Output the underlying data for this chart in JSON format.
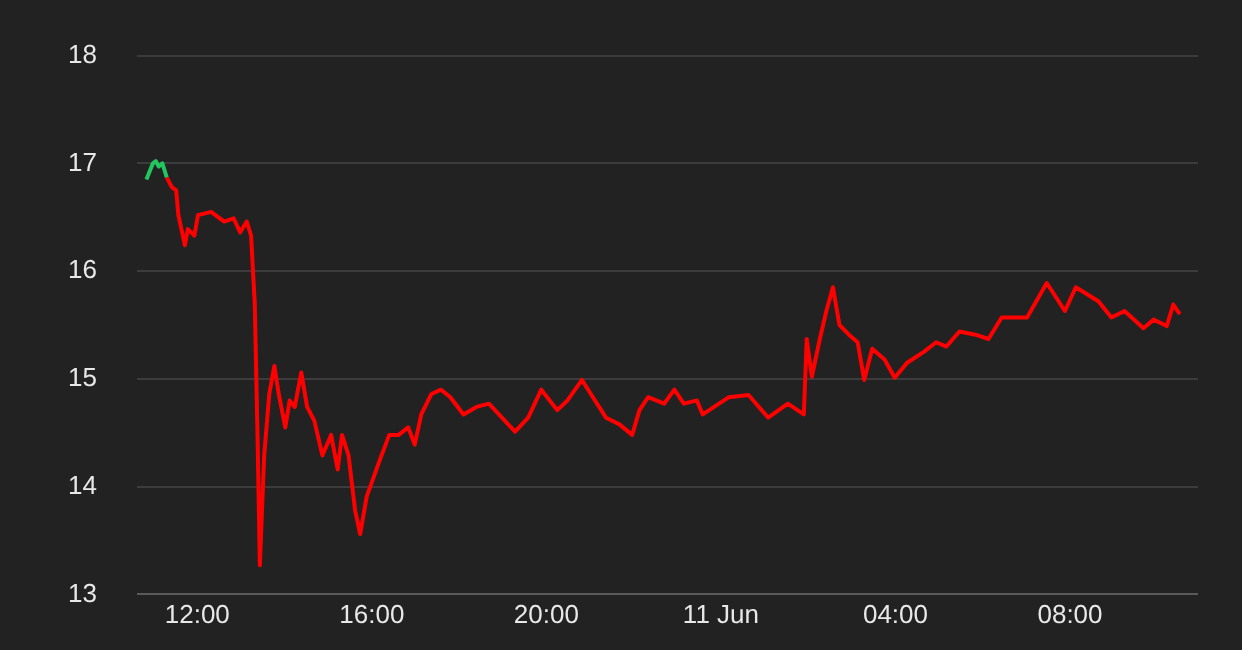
{
  "chart_data": {
    "type": "line",
    "xlim": [
      "--06-10T10:37",
      "--06-11T10:56"
    ],
    "xticks": [
      {
        "value": "--06-10T12:00",
        "label": "12:00"
      },
      {
        "value": "--06-10T16:00",
        "label": "16:00"
      },
      {
        "value": "--06-10T20:00",
        "label": "20:00"
      },
      {
        "value": "--06-11T00:00",
        "label": "11 Jun"
      },
      {
        "value": "--06-11T04:00",
        "label": "04:00"
      },
      {
        "value": "--06-11T08:00",
        "label": "08:00"
      }
    ],
    "ylim": [
      13,
      18
    ],
    "yticks": [
      13,
      14,
      15,
      16,
      17,
      18
    ],
    "grid": "y",
    "legend": false,
    "marker": "none",
    "line_style": "solid",
    "series": [
      {
        "color": "#22c55e",
        "x": [
          "--06-10T10:50",
          "--06-10T10:59",
          "--06-10T11:03",
          "--06-10T11:07",
          "--06-10T11:12",
          "--06-10T11:18"
        ],
        "values": [
          16.85,
          17.0,
          17.02,
          16.97,
          17.0,
          16.87
        ]
      },
      {
        "color": "#ff0000",
        "x": [
          "--06-10T11:18",
          "--06-10T11:25",
          "--06-10T11:31",
          "--06-10T11:34",
          "--06-10T11:43",
          "--06-10T11:47",
          "--06-10T11:56",
          "--06-10T12:01",
          "--06-10T12:19",
          "--06-10T12:37",
          "--06-10T12:50",
          "--06-10T12:59",
          "--06-10T13:08",
          "--06-10T13:14",
          "--06-10T13:19",
          "--06-10T13:23",
          "--06-10T13:26",
          "--06-10T13:32",
          "--06-10T13:39",
          "--06-10T13:46",
          "--06-10T13:52",
          "--06-10T14:01",
          "--06-10T14:07",
          "--06-10T14:14",
          "--06-10T14:23",
          "--06-10T14:31",
          "--06-10T14:41",
          "--06-10T14:52",
          "--06-10T15:04",
          "--06-10T15:13",
          "--06-10T15:19",
          "--06-10T15:28",
          "--06-10T15:37",
          "--06-10T15:44",
          "--06-10T15:53",
          "--06-10T16:00",
          "--06-10T16:10",
          "--06-10T16:24",
          "--06-10T16:37",
          "--06-10T16:50",
          "--06-10T16:59",
          "--06-10T17:08",
          "--06-10T17:22",
          "--06-10T17:35",
          "--06-10T17:48",
          "--06-10T18:06",
          "--06-10T18:24",
          "--06-10T18:41",
          "--06-10T18:59",
          "--06-10T19:17",
          "--06-10T19:35",
          "--06-10T19:53",
          "--06-10T20:15",
          "--06-10T20:29",
          "--06-10T20:49",
          "--06-10T21:04",
          "--06-10T21:22",
          "--06-10T21:40",
          "--06-10T21:58",
          "--06-10T22:08",
          "--06-10T22:20",
          "--06-10T22:42",
          "--06-10T22:56",
          "--06-10T23:09",
          "--06-10T23:27",
          "--06-10T23:35",
          "--06-11T00:11",
          "--06-11T00:38",
          "--06-11T01:05",
          "--06-11T01:32",
          "--06-11T01:54",
          "--06-11T01:58",
          "--06-11T02:05",
          "--06-11T02:16",
          "--06-11T02:25",
          "--06-11T02:34",
          "--06-11T02:43",
          "--06-11T02:56",
          "--06-11T03:08",
          "--06-11T03:17",
          "--06-11T03:28",
          "--06-11T03:45",
          "--06-11T03:59",
          "--06-11T04:16",
          "--06-11T04:39",
          "--06-11T04:56",
          "--06-11T05:10",
          "--06-11T05:28",
          "--06-11T05:50",
          "--06-11T06:08",
          "--06-11T06:26",
          "--06-11T07:01",
          "--06-11T07:28",
          "--06-11T07:53",
          "--06-11T08:08",
          "--06-11T08:39",
          "--06-11T08:57",
          "--06-11T09:15",
          "--06-11T09:41",
          "--06-11T09:55",
          "--06-11T10:13",
          "--06-11T10:22",
          "--06-11T10:31"
        ],
        "values": [
          16.87,
          16.78,
          16.75,
          16.52,
          16.24,
          16.39,
          16.33,
          16.52,
          16.55,
          16.46,
          16.49,
          16.36,
          16.46,
          16.33,
          15.7,
          14.42,
          13.27,
          14.29,
          14.86,
          15.12,
          14.86,
          14.55,
          14.8,
          14.74,
          15.06,
          14.74,
          14.61,
          14.29,
          14.48,
          14.16,
          14.48,
          14.29,
          13.78,
          13.56,
          13.91,
          14.04,
          14.23,
          14.48,
          14.48,
          14.55,
          14.39,
          14.67,
          14.86,
          14.9,
          14.83,
          14.67,
          14.74,
          14.77,
          14.64,
          14.51,
          14.64,
          14.9,
          14.71,
          14.8,
          14.99,
          14.83,
          14.64,
          14.58,
          14.48,
          14.71,
          14.83,
          14.77,
          14.9,
          14.77,
          14.8,
          14.67,
          14.83,
          14.85,
          14.64,
          14.77,
          14.67,
          15.37,
          15.02,
          15.37,
          15.63,
          15.85,
          15.5,
          15.41,
          15.34,
          14.99,
          15.28,
          15.18,
          15.01,
          15.15,
          15.25,
          15.34,
          15.3,
          15.44,
          15.41,
          15.37,
          15.57,
          15.57,
          15.89,
          15.63,
          15.85,
          15.72,
          15.57,
          15.63,
          15.47,
          15.55,
          15.49,
          15.69,
          15.6
        ]
      }
    ]
  }
}
